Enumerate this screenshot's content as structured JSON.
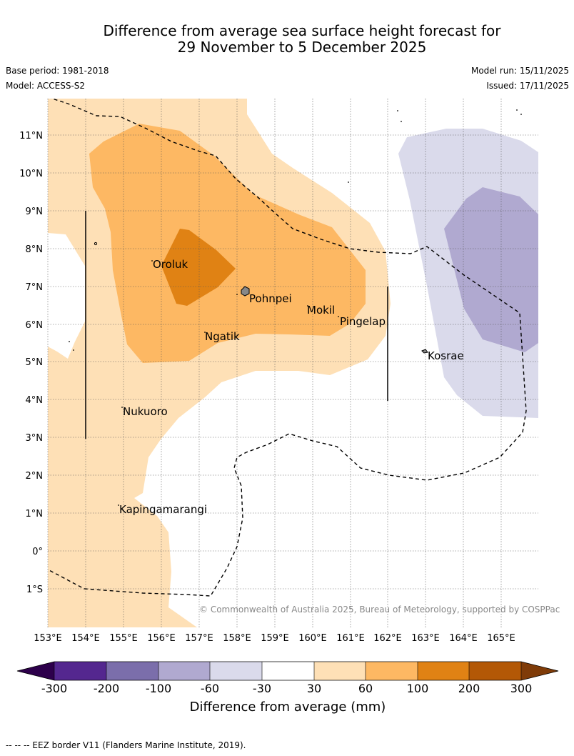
{
  "title": {
    "line1": "Difference from average sea surface height forecast for",
    "line2": "29 November to 5 December 2025"
  },
  "meta": {
    "base_period": "Base period: 1981-2018",
    "model": "Model: ACCESS-S2",
    "model_run": "Model run: 15/11/2025",
    "issued": "Issued: 17/11/2025"
  },
  "map": {
    "lat_labels": [
      "11°N",
      "10°N",
      "9°N",
      "8°N",
      "7°N",
      "6°N",
      "5°N",
      "4°N",
      "3°N",
      "2°N",
      "1°N",
      "0°",
      "1°S"
    ],
    "lon_labels": [
      "153°E",
      "154°E",
      "155°E",
      "156°E",
      "157°E",
      "158°E",
      "159°E",
      "160°E",
      "161°E",
      "162°E",
      "163°E",
      "164°E",
      "165°E"
    ],
    "places": [
      {
        "name": "Oroluk"
      },
      {
        "name": "Pohnpei"
      },
      {
        "name": "Mokil"
      },
      {
        "name": "Pingelap"
      },
      {
        "name": "Ngatik"
      },
      {
        "name": "Kosrae"
      },
      {
        "name": "Nukuoro"
      },
      {
        "name": "Kapingamarangi"
      }
    ],
    "copyright": "© Commonwealth of Australia 2025, Bureau of Meteorology, supported by COSPPac"
  },
  "colorbar": {
    "tick_labels": [
      "-300",
      "-200",
      "-100",
      "-60",
      "-30",
      "30",
      "60",
      "100",
      "200",
      "300"
    ],
    "colors": [
      "#54278f",
      "#7b6eab",
      "#b0a9d0",
      "#dadaeb",
      "#ffffff",
      "#fee0b6",
      "#fdb863",
      "#e08214",
      "#b35806"
    ],
    "under_color": "#2d004b",
    "over_color": "#7f3b08",
    "label": "Difference from average (mm)"
  },
  "footer": "--  --  -- EEZ border V11 (Flanders Marine Institute, 2019)."
}
